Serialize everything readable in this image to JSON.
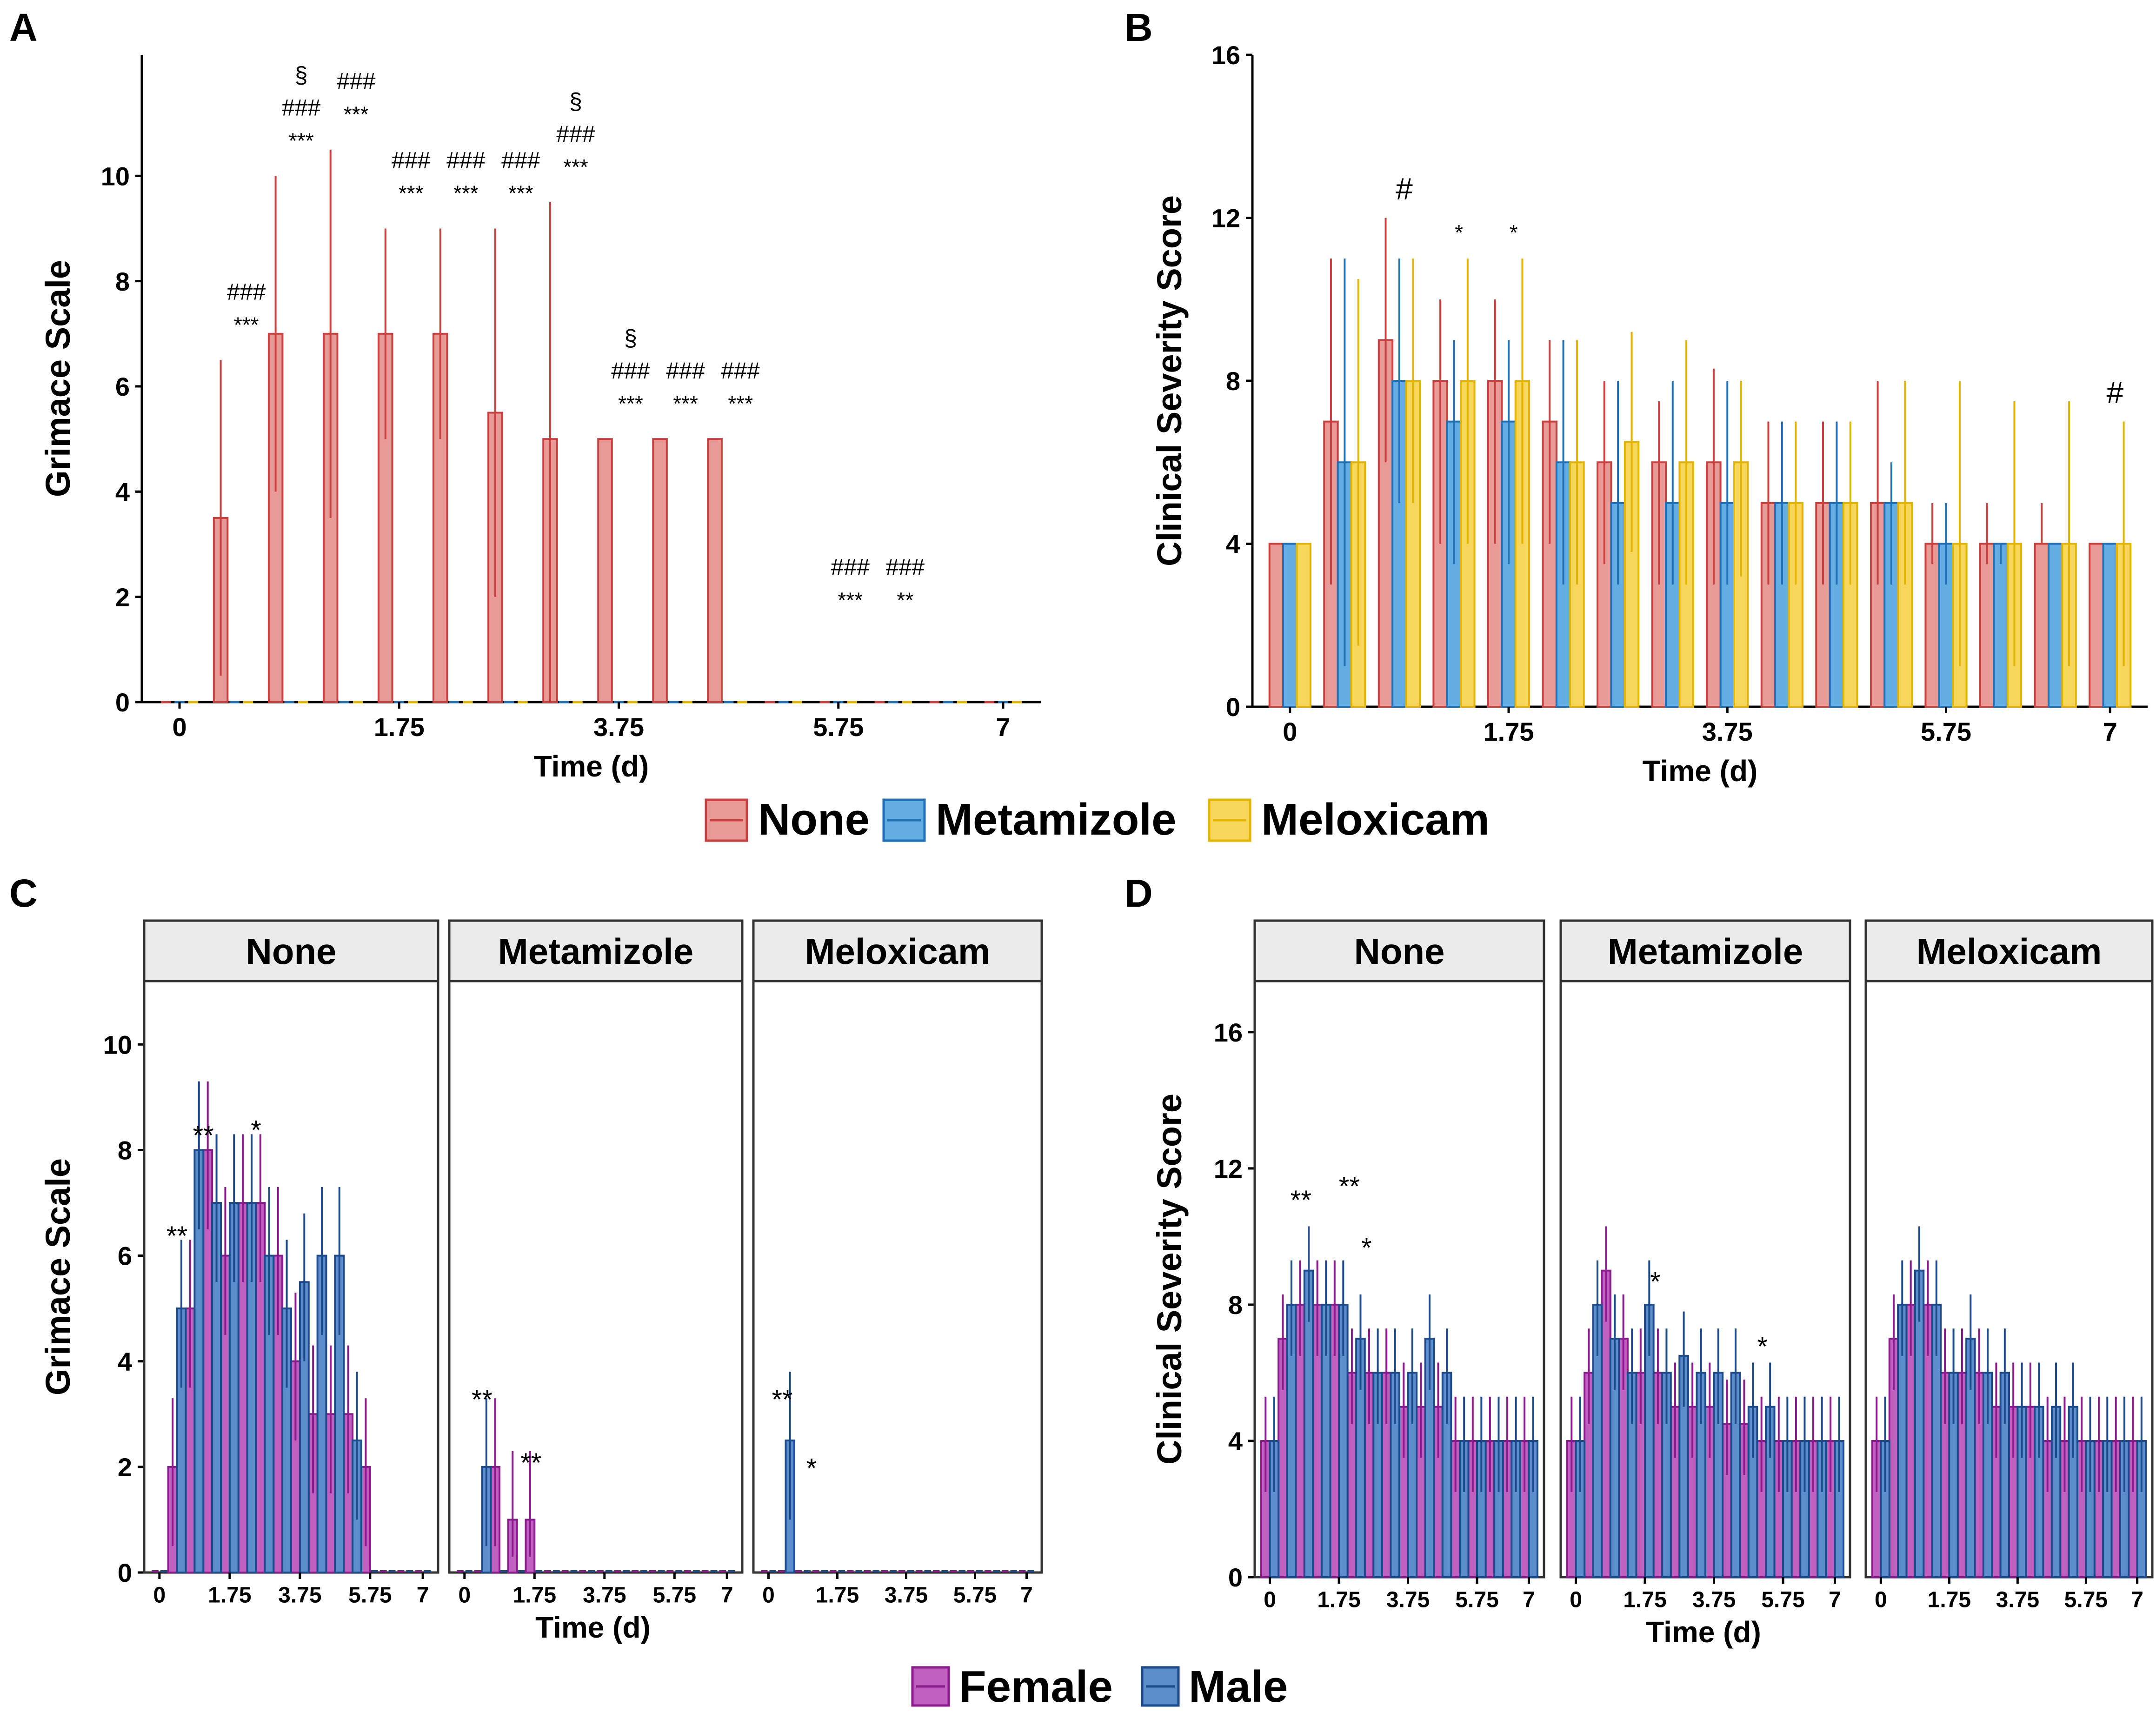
{
  "colors": {
    "none_fill": "#E89A97",
    "none_stroke": "#C9403E",
    "meta_fill": "#63ADE3",
    "meta_stroke": "#1F70B7",
    "melo_fill": "#F6D75C",
    "melo_stroke": "#E3B400",
    "female_fill": "#C061C0",
    "female_stroke": "#8B1A8E",
    "male_fill": "#5B8ECB",
    "male_stroke": "#1C4A8C",
    "strip_bg": "#EBEBEB"
  },
  "legend_top": {
    "items": [
      "None",
      "Metamizole",
      "Meloxicam"
    ]
  },
  "legend_bottom": {
    "items": [
      "Female",
      "Male"
    ]
  },
  "chart_data": [
    {
      "panel": "A",
      "type": "bar",
      "ylabel": "Grimace Scale",
      "xlabel": "Time (d)",
      "ylim": [
        0,
        12.3
      ],
      "yticks": [
        0,
        2,
        4,
        6,
        8,
        10
      ],
      "xticks": [
        "0",
        "1.75",
        "3.75",
        "5.75",
        "7"
      ],
      "series": [
        {
          "name": "None",
          "values": [
            0,
            3.5,
            7,
            7,
            7,
            7,
            5.5,
            5,
            5,
            5,
            5,
            0,
            0,
            0,
            0,
            0
          ],
          "err_low": [
            0,
            0.5,
            4,
            3.5,
            5,
            5,
            2,
            0,
            5,
            5,
            5,
            0,
            0,
            0,
            0,
            0
          ],
          "err_high": [
            0,
            6.5,
            10,
            10.5,
            9,
            9,
            9,
            9.5,
            5,
            5,
            5,
            0,
            0,
            0,
            0,
            0
          ]
        },
        {
          "name": "Metamizole",
          "values": [
            0,
            0,
            0,
            0,
            0,
            0,
            0,
            0,
            0,
            0,
            0,
            0,
            0,
            0,
            0,
            0
          ]
        },
        {
          "name": "Meloxicam",
          "values": [
            0,
            0,
            0,
            0,
            0,
            0,
            0,
            0,
            0,
            0,
            0,
            0,
            0,
            0,
            0,
            0
          ]
        }
      ],
      "annotations": [
        {
          "i": 1,
          "lines": [
            "###",
            "***"
          ]
        },
        {
          "i": 2,
          "lines": [
            "§",
            "###",
            "***"
          ]
        },
        {
          "i": 3,
          "lines": [
            "###",
            "***"
          ]
        },
        {
          "i": 4,
          "lines": [
            "###",
            "***"
          ]
        },
        {
          "i": 5,
          "lines": [
            "###",
            "***"
          ]
        },
        {
          "i": 6,
          "lines": [
            "###",
            "***"
          ]
        },
        {
          "i": 7,
          "lines": [
            "§",
            "###",
            "***"
          ]
        },
        {
          "i": 8,
          "lines": [
            "§",
            "###",
            "***"
          ]
        },
        {
          "i": 9,
          "lines": [
            "###",
            "***"
          ]
        },
        {
          "i": 10,
          "lines": [
            "###",
            "***"
          ]
        },
        {
          "i": 12,
          "lines": [
            "###",
            "***"
          ]
        },
        {
          "i": 13,
          "lines": [
            "###",
            "**"
          ]
        }
      ]
    },
    {
      "panel": "B",
      "type": "bar",
      "ylabel": "Clinical Severity Score",
      "xlabel": "Time (d)",
      "ylim": [
        0,
        16
      ],
      "yticks": [
        0,
        4,
        8,
        12,
        16
      ],
      "xticks": [
        "0",
        "1.75",
        "3.75",
        "5.75",
        "7"
      ],
      "series": [
        {
          "name": "None",
          "values": [
            4,
            7,
            9,
            8,
            8,
            7,
            6,
            6,
            6,
            5,
            5,
            5,
            4,
            4,
            4,
            4
          ],
          "err_low": [
            4,
            3,
            6,
            4,
            4,
            4,
            3.5,
            3,
            3,
            3,
            3,
            3,
            3.5,
            3.5,
            4,
            4
          ],
          "err_high": [
            4,
            11,
            12,
            10,
            10,
            9,
            8,
            7.5,
            8.3,
            7,
            7,
            8,
            5,
            5,
            5,
            4
          ]
        },
        {
          "name": "Metamizole",
          "values": [
            4,
            6,
            8,
            7,
            7,
            6,
            5,
            5,
            5,
            5,
            5,
            5,
            4,
            4,
            4,
            4
          ],
          "err_low": [
            4,
            1,
            5,
            3.5,
            3.5,
            3,
            3,
            3,
            3,
            3,
            3,
            3,
            3,
            3.5,
            4,
            4
          ],
          "err_high": [
            4,
            11,
            11,
            9,
            9,
            9,
            8,
            8,
            8,
            7,
            7,
            6,
            5,
            4,
            4,
            4
          ]
        },
        {
          "name": "Meloxicam",
          "values": [
            4,
            6,
            8,
            8,
            8,
            6,
            6.5,
            6,
            6,
            5,
            5,
            5,
            4,
            4,
            4,
            4
          ],
          "err_low": [
            4,
            1.5,
            5,
            4,
            4,
            3,
            3.8,
            3,
            3.2,
            3,
            3,
            3,
            1,
            1,
            1,
            1
          ],
          "err_high": [
            4,
            10.5,
            11,
            11,
            11,
            9,
            9.2,
            9,
            8,
            7,
            7,
            8,
            8,
            7.5,
            7.5,
            7
          ]
        }
      ],
      "annotations": [
        {
          "i": 2,
          "lines": [
            "#"
          ]
        },
        {
          "i": 3,
          "lines": [
            "*"
          ]
        },
        {
          "i": 4,
          "lines": [
            "*"
          ]
        },
        {
          "i": 15,
          "lines": [
            "#"
          ]
        }
      ]
    },
    {
      "panel": "C",
      "type": "bar",
      "ylabel": "Grimace Scale",
      "xlabel": "Time (d)",
      "ylim": [
        0,
        11.2
      ],
      "yticks": [
        0,
        2,
        4,
        6,
        8,
        10
      ],
      "xticks": [
        "0",
        "1.75",
        "3.75",
        "5.75",
        "7"
      ],
      "facets": [
        {
          "label": "None",
          "female": [
            0,
            2,
            5,
            8,
            6,
            7,
            7,
            6,
            4,
            3,
            3,
            3,
            2,
            0,
            0,
            0
          ],
          "male": [
            0,
            5,
            8,
            7,
            7,
            7,
            6,
            5,
            5.5,
            6,
            6,
            2.5,
            0,
            0,
            0,
            0
          ],
          "annotations": [
            {
              "i": 1,
              "y": 6.2,
              "text": "**"
            },
            {
              "i": 2.5,
              "y": 8.1,
              "text": "**"
            },
            {
              "i": 5.5,
              "y": 8.2,
              "text": "*"
            }
          ]
        },
        {
          "label": "Metamizole",
          "female": [
            0,
            0,
            2,
            1,
            1,
            0,
            0,
            0,
            0,
            0,
            0,
            0,
            0,
            0,
            0,
            0
          ],
          "male": [
            0,
            2,
            0,
            0,
            0,
            0,
            0,
            0,
            0,
            0,
            0,
            0,
            0,
            0,
            0,
            0
          ],
          "annotations": [
            {
              "i": 1,
              "y": 3.1,
              "text": "**"
            },
            {
              "i": 3.8,
              "y": 1.9,
              "text": "**"
            }
          ]
        },
        {
          "label": "Meloxicam",
          "female": [
            0,
            0,
            0,
            0,
            0,
            0,
            0,
            0,
            0,
            0,
            0,
            0,
            0,
            0,
            0,
            0
          ],
          "male": [
            0,
            2.5,
            0,
            0,
            0,
            0,
            0,
            0,
            0,
            0,
            0,
            0,
            0,
            0,
            0,
            0
          ],
          "annotations": [
            {
              "i": 0.8,
              "y": 3.1,
              "text": "**"
            },
            {
              "i": 2.5,
              "y": 1.8,
              "text": "*"
            }
          ]
        }
      ]
    },
    {
      "panel": "D",
      "type": "bar",
      "ylabel": "Clinical Severity Score",
      "xlabel": "Time (d)",
      "ylim": [
        0,
        17.5
      ],
      "yticks": [
        0,
        4,
        8,
        12,
        16
      ],
      "xticks": [
        "0",
        "1.75",
        "3.75",
        "5.75",
        "7"
      ],
      "facets": [
        {
          "label": "None",
          "female": [
            4,
            7,
            8,
            8,
            8,
            6,
            6,
            6,
            5,
            5,
            5,
            4,
            4,
            4,
            4,
            4
          ],
          "male": [
            4,
            8,
            9,
            8,
            8,
            7,
            6,
            6,
            6,
            7,
            6,
            4,
            4,
            4,
            4,
            4
          ],
          "annotations": [
            {
              "i": 1.8,
              "y": 10.8,
              "text": "**"
            },
            {
              "i": 4.6,
              "y": 11.2,
              "text": "**"
            },
            {
              "i": 5.6,
              "y": 9.4,
              "text": "*"
            }
          ]
        },
        {
          "label": "Metamizole",
          "female": [
            4,
            6,
            9,
            7,
            6,
            6,
            5,
            5,
            5,
            4.5,
            4.5,
            4,
            4,
            4,
            4,
            4
          ],
          "male": [
            4,
            8,
            7,
            6,
            8,
            6,
            6.5,
            6,
            6,
            6,
            5,
            5,
            4,
            4,
            4,
            4
          ],
          "annotations": [
            {
              "i": 4.6,
              "y": 8.4,
              "text": "*"
            },
            {
              "i": 10.8,
              "y": 6.5,
              "text": "*"
            }
          ]
        },
        {
          "label": "Meloxicam",
          "female": [
            4,
            7,
            8,
            8,
            6,
            6,
            6,
            5,
            5,
            5,
            4,
            4,
            4,
            4,
            4,
            4
          ],
          "male": [
            4,
            8,
            9,
            8,
            6,
            7,
            6,
            6,
            5,
            5,
            5,
            5,
            4,
            4,
            4,
            4
          ],
          "annotations": []
        }
      ]
    }
  ]
}
